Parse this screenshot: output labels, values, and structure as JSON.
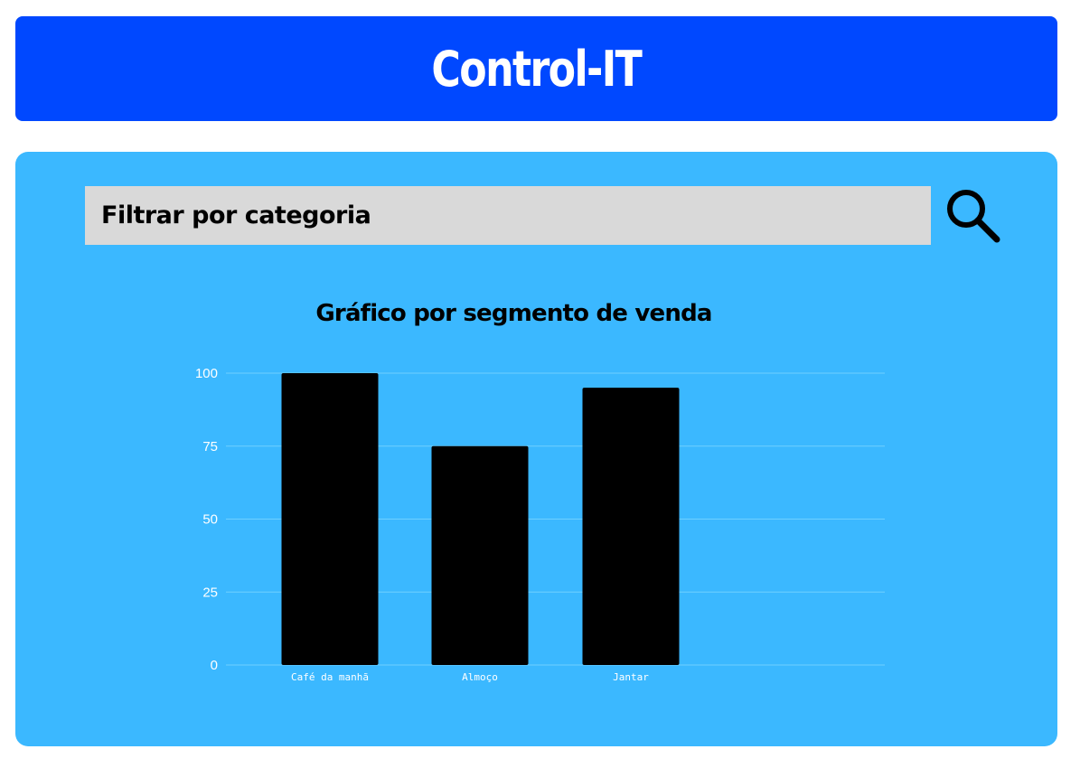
{
  "colors": {
    "header_bg": "#0048ff",
    "panel_bg": "#3bb8ff",
    "input_bg": "#d9d9d9",
    "bar": "#000000",
    "grid": "#6fd0ff"
  },
  "header": {
    "title": "Control-IT"
  },
  "filter": {
    "placeholder": "Filtrar por categoria",
    "value": "",
    "search_icon": "search-icon"
  },
  "chart_data": {
    "type": "bar",
    "title": "Gráfico por segmento de venda",
    "categories": [
      "Café da manhã",
      "Almoço",
      "Jantar"
    ],
    "values": [
      100,
      75,
      95
    ],
    "ylim": [
      0,
      100
    ],
    "yticks": [
      0,
      25,
      50,
      75,
      100
    ],
    "xlabel": "",
    "ylabel": "",
    "grid": true,
    "legend": "none"
  }
}
